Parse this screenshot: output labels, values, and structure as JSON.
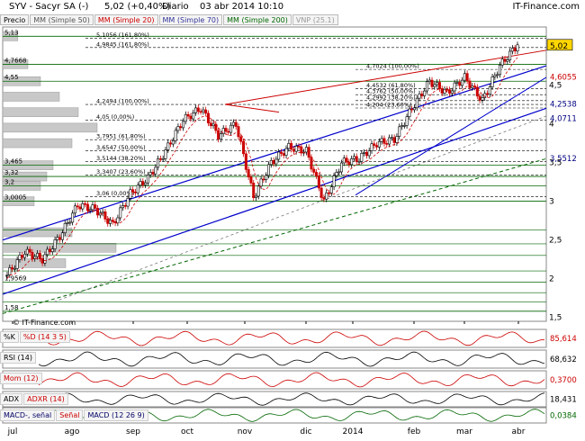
{
  "header": {
    "symbol": "SYV - Sacyr SA (-)",
    "quote": "5,02 (+0,40%)",
    "period": "Diario",
    "datetime": "03 abr 2014 10:10",
    "brand": "IT-Finance.com"
  },
  "legend": {
    "price": "Precio",
    "sma50": "MM (Simple 50)",
    "sma20": "MM (Simple 20)",
    "sma70": "MM (Simple 70)",
    "sma200": "MM (Simple 200)",
    "vnp": "VNP (25.1)"
  },
  "colors": {
    "up": "#000000",
    "down": "#cc0000",
    "sma20": "#cc0000",
    "sma50": "#555555",
    "sma70": "#333399",
    "sma200": "#006600",
    "fib": "#000000",
    "support": "#006600",
    "trend": "#0000cc",
    "volprofile": "#c8c8c8"
  },
  "watermark": "© IT-Finance.com",
  "chart_data": {
    "type": "candlestick",
    "x_ticks": [
      "jul",
      "ago",
      "sep",
      "oct",
      "nov",
      "dic",
      "2014",
      "feb",
      "mar",
      "abr"
    ],
    "y_ticks": [
      1.5,
      2,
      2.5,
      3,
      3.5,
      4,
      4.5,
      5
    ],
    "y_tick_labels": [
      "1,5",
      "2",
      "2,5",
      "3",
      "3,5",
      "4",
      "4,5",
      "5"
    ],
    "ylim": [
      1.45,
      5.25
    ],
    "last_price": "5,02",
    "right_labels": [
      "4,6055",
      "4,2538",
      "4,0711",
      "3,5512"
    ],
    "support_levels": [
      {
        "label": "5,13",
        "value": 5.13
      },
      {
        "label": "4,7668",
        "value": 4.7668
      },
      {
        "label": "4,55",
        "value": 4.55
      },
      {
        "label": "3,465",
        "value": 3.465
      },
      {
        "label": "3,32",
        "value": 3.32
      },
      {
        "label": "3,2",
        "value": 3.2
      },
      {
        "label": "3,0005",
        "value": 3.0005
      },
      {
        "label": "1,9569",
        "value": 1.9569
      },
      {
        "label": "1,58",
        "value": 1.58
      }
    ],
    "fib_levels": [
      {
        "label": "5,1056 (161,80%)",
        "value": 5.1056
      },
      {
        "label": "4,9845 (161,80%)",
        "value": 4.9845
      },
      {
        "label": "4,7024 (100,00%)",
        "value": 4.7024
      },
      {
        "label": "4,4532 (61,80%)",
        "value": 4.4532
      },
      {
        "label": "4,3762 (50,00%)",
        "value": 4.3762
      },
      {
        "label": "4,2992 (38,20%)",
        "value": 4.2992
      },
      {
        "label": "4,204 (23,60%)",
        "value": 4.204
      },
      {
        "label": "4,2494 (100,00%)",
        "value": 4.2494
      },
      {
        "label": "4,05 (0,00%)",
        "value": 4.05
      },
      {
        "label": "3,7951 (61,80%)",
        "value": 3.7951
      },
      {
        "label": "3,6547 (50,00%)",
        "value": 3.6547
      },
      {
        "label": "3,5144 (38,20%)",
        "value": 3.5144
      },
      {
        "label": "3,3407 (23,60%)",
        "value": 3.3407
      },
      {
        "label": "3,06 (0,00%)",
        "value": 3.06
      }
    ],
    "price_path": [
      [
        "jul",
        2.05
      ],
      [
        "jul",
        2.35
      ],
      [
        "jul",
        2.25
      ],
      [
        "ago",
        2.55
      ],
      [
        "ago",
        2.95
      ],
      [
        "ago",
        2.9
      ],
      [
        "sep",
        2.7
      ],
      [
        "sep",
        3.1
      ],
      [
        "sep",
        3.3
      ],
      [
        "oct",
        3.65
      ],
      [
        "oct",
        4.05
      ],
      [
        "oct",
        4.2
      ],
      [
        "nov",
        3.85
      ],
      [
        "nov",
        4.0
      ],
      [
        "nov",
        3.05
      ],
      [
        "dic",
        3.5
      ],
      [
        "dic",
        3.7
      ],
      [
        "dic",
        3.65
      ],
      [
        "2014",
        3.0
      ],
      [
        "2014",
        3.5
      ],
      [
        "2014",
        3.55
      ],
      [
        "feb",
        3.75
      ],
      [
        "feb",
        3.8
      ],
      [
        "feb",
        4.2
      ],
      [
        "mar",
        4.55
      ],
      [
        "mar",
        4.4
      ],
      [
        "mar",
        4.6
      ],
      [
        "mar",
        4.3
      ],
      [
        "abr",
        4.75
      ],
      [
        "abr",
        5.02
      ]
    ],
    "volume_profile": [
      {
        "price": 5.13,
        "len": 0.12
      },
      {
        "price": 4.77,
        "len": 0.2
      },
      {
        "price": 4.55,
        "len": 0.3
      },
      {
        "price": 4.35,
        "len": 0.45
      },
      {
        "price": 4.15,
        "len": 0.6
      },
      {
        "price": 3.95,
        "len": 0.75
      },
      {
        "price": 3.75,
        "len": 0.55
      },
      {
        "price": 3.465,
        "len": 0.4
      },
      {
        "price": 3.32,
        "len": 0.35
      },
      {
        "price": 3.2,
        "len": 0.3
      },
      {
        "price": 3.0,
        "len": 0.25
      },
      {
        "price": 2.6,
        "len": 0.55
      },
      {
        "price": 2.4,
        "len": 0.9
      },
      {
        "price": 2.2,
        "len": 0.5
      }
    ],
    "indicators": [
      {
        "name": "%K",
        "label": "%D (14 3 5)",
        "value": "85,614",
        "color": "#cc0000"
      },
      {
        "name": "RSI",
        "label": "RSI (14)",
        "value": "68,632",
        "color": "#000000"
      },
      {
        "name": "Mom",
        "label": "Mom (12)",
        "value": "0,3700",
        "color": "#cc0000"
      },
      {
        "name": "ADX",
        "label": "ADXR (14)",
        "value": "18,431",
        "color": "#000000"
      },
      {
        "name": "MACD",
        "label": "MACD (12 26 9)",
        "value": "0,0384",
        "color": "#006600",
        "extra1": "MACD-, señal",
        "extra2": "Señal"
      }
    ]
  }
}
